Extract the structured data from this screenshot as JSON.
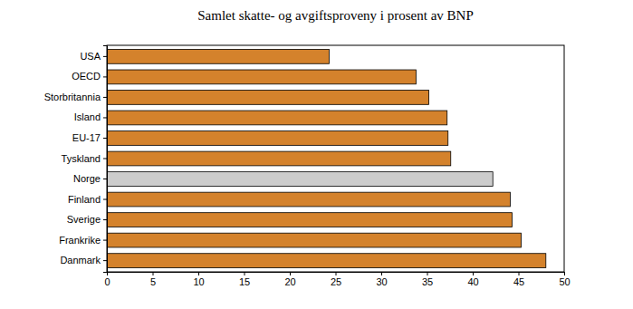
{
  "chart_data": {
    "type": "bar",
    "orientation": "horizontal",
    "title": "Samlet skatte- og avgiftsproveny i prosent av BNP",
    "categories": [
      "USA",
      "OECD",
      "Storbritannia",
      "Island",
      "EU-17",
      "Tyskland",
      "Norge",
      "Finland",
      "Sverige",
      "Frankrike",
      "Danmark"
    ],
    "values": [
      24.3,
      33.8,
      35.2,
      37.2,
      37.3,
      37.6,
      42.2,
      44.1,
      44.3,
      45.3,
      48.0
    ],
    "colors": [
      "#d4822c",
      "#d4822c",
      "#d4822c",
      "#d4822c",
      "#d4822c",
      "#d4822c",
      "#cccccc",
      "#d4822c",
      "#d4822c",
      "#d4822c",
      "#d4822c"
    ],
    "xlim": [
      0,
      50
    ],
    "xticks": [
      0,
      5,
      10,
      15,
      20,
      25,
      30,
      35,
      40,
      45,
      50
    ],
    "grid": false
  }
}
